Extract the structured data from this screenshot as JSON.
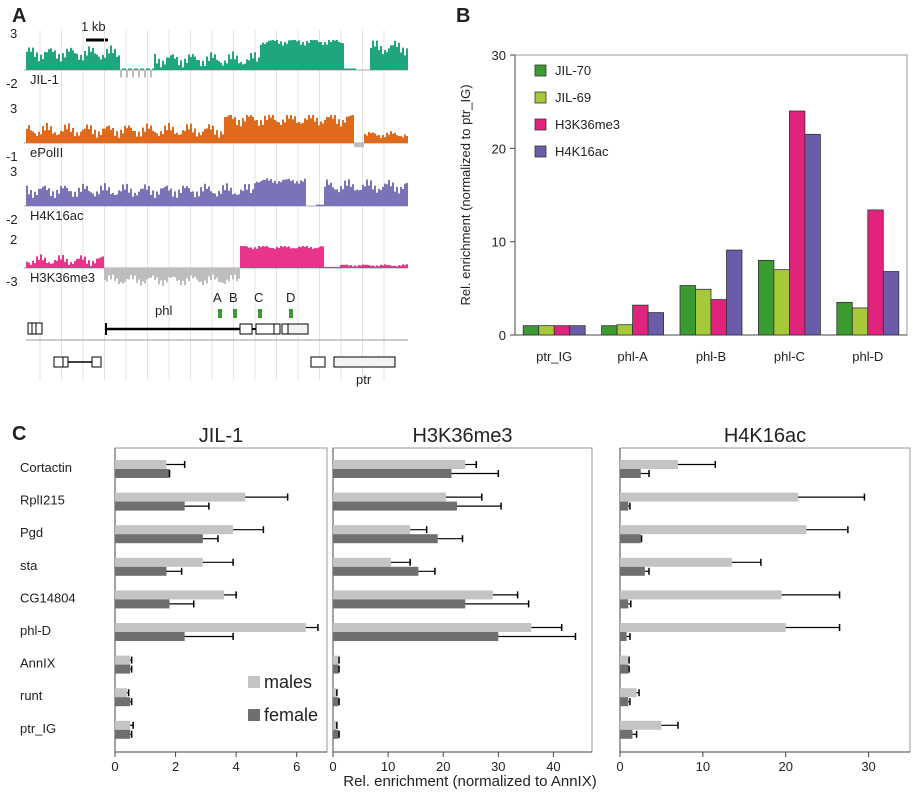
{
  "panels": {
    "a": "A",
    "b": "B",
    "c": "C"
  },
  "colors": {
    "jil": "#1fa67f",
    "pol": "#e06a1b",
    "h4": "#7b73b8",
    "h3": "#e8348a",
    "neg": "#bdbdbd"
  },
  "panel_a": {
    "scale_label": "1 kb",
    "tracks": [
      {
        "name": "JIL-1",
        "ymax": "3",
        "ymin": "-2",
        "color": "#1fa67f"
      },
      {
        "name": "ePolII",
        "ymax": "3",
        "ymin": "-1",
        "color": "#e06a1b"
      },
      {
        "name": "H4K16ac",
        "ymax": "3",
        "ymin": "-2",
        "color": "#7b73b8"
      },
      {
        "name": "H3K36me3",
        "ymax": "2",
        "ymin": "-3",
        "color": "#e8348a"
      }
    ],
    "gene_labels": {
      "phl": "phl",
      "ptr": "ptr"
    },
    "amplicons": [
      "A",
      "B",
      "C",
      "D"
    ]
  },
  "chart_data": [
    {
      "type": "bar",
      "ylabel": "Rel. enrichment (normalized to ptr_IG)",
      "ylim": [
        0,
        30
      ],
      "yticks": [
        "0",
        "10",
        "20",
        "30"
      ],
      "categories": [
        "ptr_IG",
        "phl-A",
        "phl-B",
        "phl-C",
        "phl-D"
      ],
      "legend_placement": "top-left",
      "series": [
        {
          "name": "JIL-70",
          "color": "#3c9a32",
          "values": [
            1.0,
            1.0,
            5.3,
            8.0,
            3.5
          ]
        },
        {
          "name": "JIL-69",
          "color": "#a6c93a",
          "values": [
            1.0,
            1.1,
            4.9,
            7.0,
            2.9
          ]
        },
        {
          "name": "H3K36me3",
          "color": "#e0237c",
          "values": [
            1.0,
            3.2,
            3.8,
            24.0,
            13.4
          ]
        },
        {
          "name": "H4K16ac",
          "color": "#6a5ca8",
          "values": [
            1.0,
            2.4,
            9.1,
            21.5,
            6.8
          ]
        }
      ]
    },
    {
      "type": "bar",
      "orientation": "horizontal",
      "xlabel": "Rel. enrichment (normalized to AnnIX)",
      "categories": [
        "Cortactin",
        "RplI215",
        "Pgd",
        "sta",
        "CG14804",
        "phl-D",
        "AnnIX",
        "runt",
        "ptr_IG"
      ],
      "legend": [
        {
          "name": "males",
          "color": "#c4c4c4"
        },
        {
          "name": "female",
          "color": "#6f6f6f"
        }
      ],
      "legend_placement": "bottom-right of first panel",
      "panels": [
        {
          "title": "JIL-1",
          "xlim": [
            0,
            7
          ],
          "xticks": [
            "0",
            "2",
            "4",
            "6"
          ],
          "males": [
            1.7,
            4.3,
            3.9,
            2.9,
            3.6,
            6.3,
            0.5,
            0.4,
            0.5
          ],
          "males_err": [
            0.6,
            1.4,
            1.0,
            1.0,
            0.4,
            0.4,
            0.05,
            0.05,
            0.1
          ],
          "females": [
            1.8,
            2.3,
            2.9,
            1.7,
            1.8,
            2.3,
            0.5,
            0.5,
            0.5
          ],
          "females_err": [
            0.0,
            0.8,
            0.5,
            0.5,
            0.8,
            1.6,
            0.05,
            0.05,
            0.05
          ]
        },
        {
          "title": "H3K36me3",
          "xlim": [
            0,
            47
          ],
          "xticks": [
            "0",
            "10",
            "20",
            "30",
            "40"
          ],
          "males": [
            24.0,
            20.5,
            14.0,
            10.5,
            29.0,
            36.0,
            1.0,
            0.6,
            0.6
          ],
          "males_err": [
            2.0,
            6.5,
            3.0,
            3.5,
            4.5,
            5.5,
            0.1,
            0.1,
            0.1
          ],
          "females": [
            21.5,
            22.5,
            19.0,
            15.5,
            24.0,
            30.0,
            1.0,
            1.0,
            1.0
          ],
          "females_err": [
            8.5,
            8.0,
            4.5,
            3.0,
            11.5,
            14.0,
            0.1,
            0.1,
            0.1
          ]
        },
        {
          "title": "H4K16ac",
          "xlim": [
            0,
            35
          ],
          "xticks": [
            "0",
            "10",
            "20",
            "30"
          ],
          "males": [
            7.0,
            21.5,
            22.5,
            13.5,
            19.5,
            20.0,
            1.0,
            2.0,
            5.0
          ],
          "males_err": [
            4.5,
            8.0,
            5.0,
            3.5,
            7.0,
            6.5,
            0.1,
            0.3,
            2.0
          ],
          "females": [
            2.5,
            1.0,
            2.5,
            3.0,
            1.0,
            0.8,
            1.0,
            1.0,
            1.5
          ],
          "females_err": [
            1.0,
            0.2,
            0.1,
            0.5,
            0.3,
            0.4,
            0.1,
            0.2,
            0.5
          ]
        }
      ]
    }
  ]
}
